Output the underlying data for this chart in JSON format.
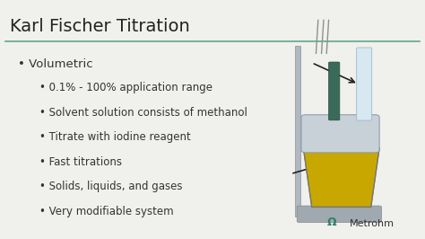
{
  "title": "Karl Fischer Titration",
  "title_fontsize": 14,
  "title_color": "#222222",
  "bg_color": "#f0f0ec",
  "line_color": "#5aaa8c",
  "bullet_main": "Volumetric",
  "bullet_main_fontsize": 9.5,
  "sub_bullets": [
    "0.1% - 100% application range",
    "Solvent solution consists of methanol",
    "Titrate with iodine reagent",
    "Fast titrations",
    "Solids, liquids, and gases",
    "Very modifiable system"
  ],
  "sub_bullet_fontsize": 8.5,
  "text_color": "#333333",
  "metrohm_text": "Metrohm",
  "metrohm_color": "#333333",
  "metrohm_icon_color": "#2e7d6e",
  "arrow_color": "#222222"
}
